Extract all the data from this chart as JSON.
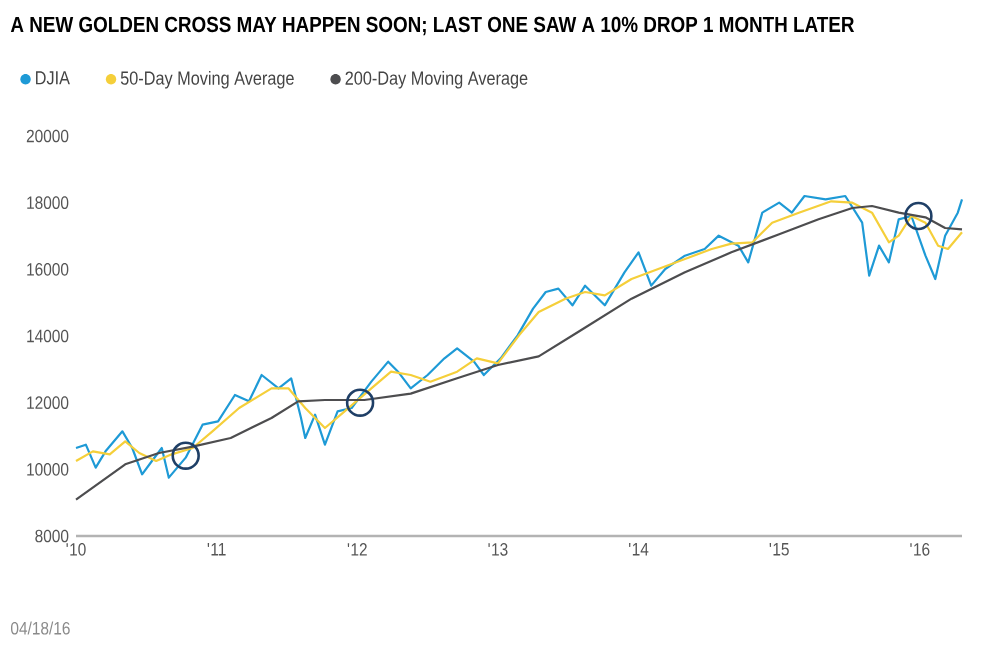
{
  "chart_data": {
    "type": "line",
    "title": "A NEW GOLDEN CROSS MAY HAPPEN SOON; LAST ONE SAW A 10% DROP 1 MONTH LATER",
    "annotations": [
      "04/18/16"
    ],
    "xlim": [
      2010,
      2016.3
    ],
    "xticks": [
      {
        "value": 2010,
        "label": "'10"
      },
      {
        "value": 2011,
        "label": "'11"
      },
      {
        "value": 2012,
        "label": "'12"
      },
      {
        "value": 2013,
        "label": "'13"
      },
      {
        "value": 2014,
        "label": "'14"
      },
      {
        "value": 2015,
        "label": "'15"
      },
      {
        "value": 2016,
        "label": "'16"
      }
    ],
    "ylim": [
      8000,
      20000
    ],
    "yticks": [
      8000,
      10000,
      12000,
      14000,
      16000,
      18000,
      20000
    ],
    "grid": false,
    "legend": "top left",
    "marker": "none",
    "series": [
      {
        "name": "DJIA",
        "color": "#1e9ad6",
        "x": [
          2010.0,
          2010.07,
          2010.14,
          2010.21,
          2010.33,
          2010.4,
          2010.47,
          2010.54,
          2010.61,
          2010.66,
          2010.78,
          2010.9,
          2011.01,
          2011.13,
          2011.23,
          2011.32,
          2011.44,
          2011.53,
          2011.6,
          2011.63,
          2011.7,
          2011.77,
          2011.86,
          2011.96,
          2012.1,
          2012.22,
          2012.29,
          2012.38,
          2012.5,
          2012.62,
          2012.71,
          2012.83,
          2012.9,
          2013.02,
          2013.14,
          2013.25,
          2013.34,
          2013.43,
          2013.53,
          2013.62,
          2013.76,
          2013.9,
          2014.0,
          2014.09,
          2014.19,
          2014.33,
          2014.47,
          2014.57,
          2014.71,
          2014.78,
          2014.88,
          2015.0,
          2015.09,
          2015.18,
          2015.33,
          2015.47,
          2015.59,
          2015.64,
          2015.71,
          2015.78,
          2015.85,
          2015.94,
          2016.04,
          2016.11,
          2016.18,
          2016.27,
          2016.3
        ],
        "values": [
          10640,
          10740,
          10050,
          10540,
          11140,
          10640,
          9850,
          10250,
          10640,
          9750,
          10350,
          11340,
          11440,
          12230,
          12040,
          12830,
          12430,
          12730,
          11540,
          10940,
          11640,
          10740,
          11740,
          11840,
          12630,
          13230,
          12930,
          12430,
          12830,
          13330,
          13630,
          13230,
          12830,
          13330,
          14020,
          14820,
          15320,
          15420,
          14920,
          15510,
          14920,
          15910,
          16510,
          15510,
          16010,
          16410,
          16610,
          17010,
          16710,
          16210,
          17700,
          18000,
          17700,
          18200,
          18100,
          18200,
          17400,
          15810,
          16710,
          16210,
          17500,
          17600,
          16410,
          15710,
          17010,
          17700,
          18100
        ]
      },
      {
        "name": "50-Day Moving Average",
        "color": "#f5cf3a",
        "x": [
          2010.0,
          2010.12,
          2010.24,
          2010.35,
          2010.45,
          2010.57,
          2010.68,
          2010.83,
          2010.97,
          2011.16,
          2011.39,
          2011.51,
          2011.63,
          2011.77,
          2011.91,
          2012.1,
          2012.24,
          2012.38,
          2012.52,
          2012.71,
          2012.85,
          2013.0,
          2013.15,
          2013.29,
          2013.48,
          2013.62,
          2013.76,
          2013.95,
          2014.14,
          2014.33,
          2014.52,
          2014.66,
          2014.81,
          2014.95,
          2015.14,
          2015.37,
          2015.52,
          2015.66,
          2015.78,
          2015.85,
          2015.94,
          2016.04,
          2016.13,
          2016.2,
          2016.3
        ],
        "values": [
          10250,
          10540,
          10450,
          10840,
          10490,
          10250,
          10450,
          10640,
          11140,
          11840,
          12430,
          12430,
          11840,
          11240,
          11740,
          12430,
          12930,
          12830,
          12630,
          12930,
          13330,
          13180,
          14020,
          14720,
          15120,
          15320,
          15220,
          15710,
          16010,
          16310,
          16610,
          16770,
          16810,
          17400,
          17700,
          18040,
          18000,
          17700,
          16810,
          17010,
          17600,
          17400,
          16710,
          16610,
          17110
        ]
      },
      {
        "name": "200-Day Moving Average",
        "color": "#4d4d4f",
        "x": [
          2010.0,
          2010.35,
          2010.59,
          2010.83,
          2011.1,
          2011.39,
          2011.58,
          2011.77,
          2012.05,
          2012.38,
          2012.71,
          2013.0,
          2013.29,
          2013.57,
          2013.95,
          2014.33,
          2014.66,
          2015.0,
          2015.28,
          2015.52,
          2015.66,
          2015.85,
          2016.04,
          2016.18,
          2016.3
        ],
        "values": [
          9090,
          10150,
          10490,
          10680,
          10940,
          11540,
          12040,
          12080,
          12080,
          12270,
          12730,
          13130,
          13390,
          14120,
          15120,
          15910,
          16510,
          17050,
          17500,
          17840,
          17900,
          17700,
          17560,
          17240,
          17200
        ]
      },
      {
        "type": "scatter",
        "marker": "circle",
        "color": "#1f3f66",
        "x": [
          2010.78,
          2012.02,
          2015.99
        ],
        "values": [
          10410,
          12000,
          17600
        ]
      }
    ]
  }
}
